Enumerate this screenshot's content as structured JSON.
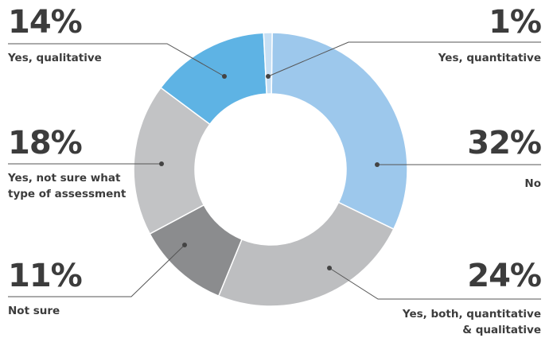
{
  "chart_data": {
    "type": "pie",
    "donut": true,
    "slices": [
      {
        "label": "No",
        "value": 32,
        "display": "32%",
        "color": "#9dc8ec"
      },
      {
        "label": "Yes, both, quantitative & qualitative",
        "value": 24,
        "display": "24%",
        "color": "#bdbec0"
      },
      {
        "label": "Not sure",
        "value": 11,
        "display": "11%",
        "color": "#8b8c8e"
      },
      {
        "label": "Yes, not sure what type of assessment",
        "value": 18,
        "display": "18%",
        "color": "#c2c3c5"
      },
      {
        "label": "Yes, qualitative",
        "value": 14,
        "display": "14%",
        "color": "#5eb3e4"
      },
      {
        "label": "Yes, quantitative",
        "value": 1,
        "display": "1%",
        "color": "#c6dff4"
      }
    ]
  },
  "labels": {
    "qualitative": {
      "pct": "14%",
      "text": "Yes, qualitative"
    },
    "quantitative": {
      "pct": "1%",
      "text": "Yes, quantitative"
    },
    "not_sure_type": {
      "pct": "18%",
      "line1": "Yes, not sure what",
      "line2": "type of assessment"
    },
    "no": {
      "pct": "32%",
      "text": "No"
    },
    "not_sure": {
      "pct": "11%",
      "text": "Not sure"
    },
    "both": {
      "pct": "24%",
      "line1": "Yes, both, quantitative",
      "line2": "& qualitative"
    }
  }
}
